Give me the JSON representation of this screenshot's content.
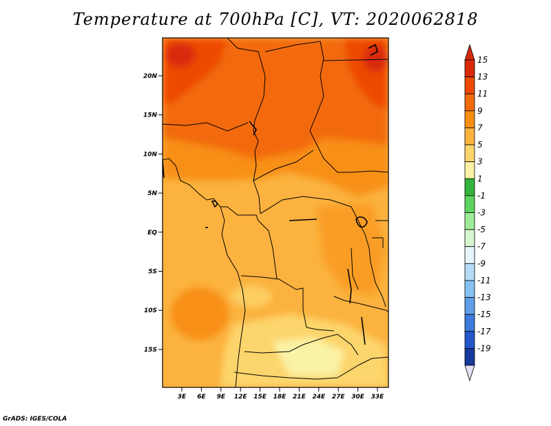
{
  "title": "Temperature at 700hPa [C], VT: 2020062818",
  "credit": "GrADS: IGES/COLA",
  "map": {
    "lon_ticks": [
      "3E",
      "6E",
      "9E",
      "12E",
      "15E",
      "18E",
      "21E",
      "24E",
      "27E",
      "30E",
      "33E"
    ],
    "lat_ticks": [
      "20N",
      "15N",
      "10N",
      "5N",
      "EQ",
      "5S",
      "10S",
      "15S"
    ],
    "land_region": "Central/West Africa",
    "field": "temperature",
    "level": "700hPa",
    "units": "C"
  },
  "colorbar": {
    "labels": [
      "15",
      "13",
      "11",
      "9",
      "7",
      "5",
      "3",
      "1",
      "-1",
      "-3",
      "-5",
      "-7",
      "-9",
      "-11",
      "-13",
      "-15",
      "-17",
      "-19"
    ],
    "colors": [
      "#d92a08",
      "#ee4a06",
      "#f26b0b",
      "#f88f12",
      "#fbb23f",
      "#fcd56c",
      "#faf2a4",
      "#34b43c",
      "#5ed460",
      "#9fec98",
      "#d6f7d0",
      "#e8f4fb",
      "#b5dcf6",
      "#86c1f1",
      "#5f9ee9",
      "#3d7bdc",
      "#2457ca",
      "#15399c",
      "#081a69"
    ],
    "end_colors": {
      "top": "#d42a0c",
      "bottom": "#e4e0f5"
    }
  }
}
